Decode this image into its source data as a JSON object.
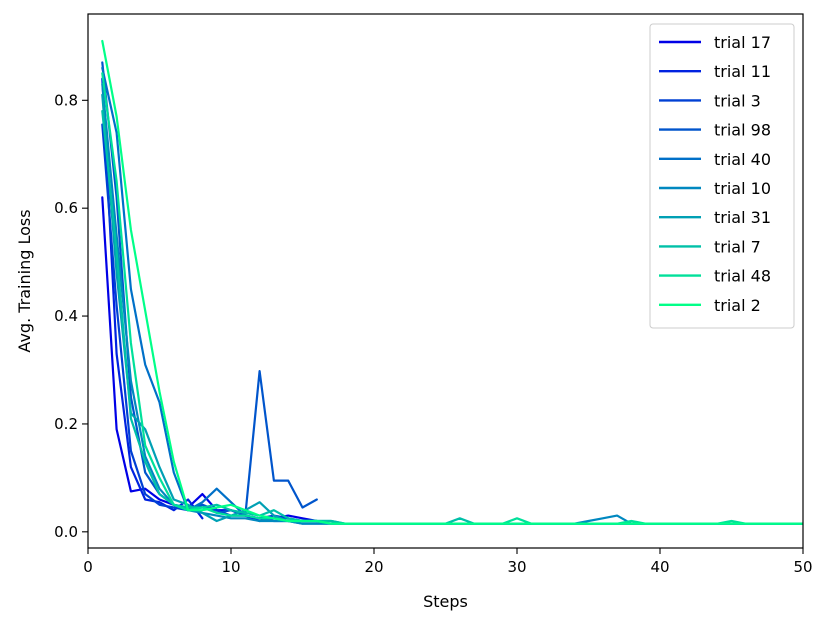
{
  "chart_data": {
    "type": "line",
    "title": "",
    "xlabel": "Steps",
    "ylabel": "Avg. Training Loss",
    "xlim": [
      0,
      50
    ],
    "ylim": [
      -0.03,
      0.96
    ],
    "xticks": [
      "0",
      "10",
      "20",
      "30",
      "40",
      "50"
    ],
    "yticks": [
      "0.0",
      "0.2",
      "0.4",
      "0.6",
      "0.8"
    ],
    "grid": false,
    "legend_position": "top-right",
    "series": [
      {
        "name": "trial 17",
        "color": "#0000e6",
        "x": [
          1,
          2,
          3,
          4,
          5,
          6,
          7,
          8,
          9,
          10,
          11,
          12,
          13,
          14,
          15,
          16
        ],
        "y": [
          0.62,
          0.19,
          0.075,
          0.08,
          0.06,
          0.05,
          0.045,
          0.07,
          0.04,
          0.04,
          0.03,
          0.02,
          0.025,
          0.03,
          0.025,
          0.02
        ]
      },
      {
        "name": "trial 11",
        "color": "#0022e0",
        "x": [
          1,
          2,
          3,
          4,
          5,
          6,
          7,
          8
        ],
        "y": [
          0.84,
          0.33,
          0.12,
          0.06,
          0.055,
          0.04,
          0.06,
          0.025
        ]
      },
      {
        "name": "trial 3",
        "color": "#0040d4",
        "x": [
          1,
          2,
          3,
          4,
          5,
          6,
          7,
          8,
          9,
          10,
          11,
          12,
          13,
          14,
          15,
          16
        ],
        "y": [
          0.755,
          0.42,
          0.15,
          0.07,
          0.05,
          0.045,
          0.04,
          0.05,
          0.04,
          0.03,
          0.03,
          0.025,
          0.03,
          0.025,
          0.02,
          0.02
        ]
      },
      {
        "name": "trial 98",
        "color": "#0055cc",
        "x": [
          1,
          2,
          3,
          4,
          5,
          6,
          7,
          8,
          9,
          10,
          11,
          12,
          13,
          14,
          15,
          16
        ],
        "y": [
          0.87,
          0.62,
          0.25,
          0.11,
          0.07,
          0.05,
          0.04,
          0.05,
          0.035,
          0.04,
          0.03,
          0.298,
          0.095,
          0.095,
          0.045,
          0.06
        ]
      },
      {
        "name": "trial 40",
        "color": "#0070c8",
        "x": [
          1,
          2,
          3,
          4,
          5,
          6,
          7,
          8,
          9,
          10,
          11,
          12,
          13,
          14,
          15,
          16,
          17,
          18,
          19,
          20,
          21,
          22,
          23,
          24,
          25,
          26,
          27,
          28,
          29,
          30,
          31,
          32,
          33,
          34,
          35,
          36,
          37,
          38,
          39,
          40,
          41,
          42,
          43,
          44,
          45,
          46,
          47,
          48,
          49,
          50
        ],
        "y": [
          0.86,
          0.74,
          0.45,
          0.31,
          0.24,
          0.11,
          0.04,
          0.055,
          0.08,
          0.055,
          0.03,
          0.025,
          0.02,
          0.02,
          0.015,
          0.015,
          0.015,
          0.015,
          0.015,
          0.015,
          0.015,
          0.015,
          0.015,
          0.015,
          0.015,
          0.015,
          0.015,
          0.015,
          0.015,
          0.015,
          0.015,
          0.015,
          0.015,
          0.015,
          0.015,
          0.015,
          0.015,
          0.015,
          0.015,
          0.015,
          0.015,
          0.015,
          0.015,
          0.015,
          0.015,
          0.015,
          0.015,
          0.015,
          0.015,
          0.015
        ]
      },
      {
        "name": "trial 10",
        "color": "#0088c0",
        "x": [
          1,
          2,
          3,
          4,
          5,
          6,
          7,
          8,
          9,
          10,
          11,
          12,
          13,
          14,
          15,
          16,
          17,
          18,
          19,
          20,
          21,
          22,
          23,
          24,
          25,
          26,
          27,
          28,
          29,
          30,
          31,
          32,
          33,
          34,
          35,
          36,
          37,
          38,
          39,
          40,
          41,
          42,
          43,
          44,
          45,
          46,
          47,
          48,
          49,
          50
        ],
        "y": [
          0.83,
          0.55,
          0.28,
          0.14,
          0.08,
          0.05,
          0.04,
          0.035,
          0.03,
          0.025,
          0.025,
          0.02,
          0.02,
          0.02,
          0.015,
          0.015,
          0.015,
          0.015,
          0.015,
          0.015,
          0.015,
          0.015,
          0.015,
          0.015,
          0.015,
          0.015,
          0.015,
          0.015,
          0.015,
          0.015,
          0.015,
          0.015,
          0.015,
          0.015,
          0.02,
          0.025,
          0.03,
          0.015,
          0.015,
          0.015,
          0.015,
          0.015,
          0.015,
          0.015,
          0.015,
          0.015,
          0.015,
          0.015,
          0.015,
          0.015
        ]
      },
      {
        "name": "trial 31",
        "color": "#00a0b4",
        "x": [
          1,
          2,
          3,
          4,
          5,
          6,
          7,
          8,
          9,
          10,
          11,
          12,
          13,
          14,
          15,
          16,
          17,
          18,
          19,
          20,
          21,
          22,
          23,
          24,
          25,
          26,
          27,
          28,
          29,
          30,
          31,
          32,
          33,
          34,
          35,
          36,
          37,
          38,
          39,
          40,
          41,
          42,
          43,
          44,
          45,
          46,
          47,
          48,
          49,
          50
        ],
        "y": [
          0.81,
          0.48,
          0.22,
          0.19,
          0.12,
          0.06,
          0.05,
          0.035,
          0.02,
          0.03,
          0.04,
          0.055,
          0.03,
          0.02,
          0.02,
          0.02,
          0.02,
          0.015,
          0.015,
          0.015,
          0.015,
          0.015,
          0.015,
          0.015,
          0.015,
          0.015,
          0.015,
          0.015,
          0.015,
          0.015,
          0.015,
          0.015,
          0.015,
          0.015,
          0.015,
          0.015,
          0.015,
          0.015,
          0.015,
          0.015,
          0.015,
          0.015,
          0.015,
          0.015,
          0.015,
          0.015,
          0.015,
          0.015,
          0.015,
          0.015
        ]
      },
      {
        "name": "trial 7",
        "color": "#00c0a8",
        "x": [
          1,
          2,
          3,
          4,
          5,
          6,
          7,
          8,
          9,
          10,
          11,
          12,
          13,
          14,
          15,
          16,
          17,
          18,
          19,
          20,
          21,
          22,
          23,
          24,
          25,
          26,
          27,
          28,
          29,
          30,
          31,
          32,
          33,
          34,
          35,
          36,
          37,
          38,
          39,
          40,
          41,
          42,
          43,
          44,
          45,
          46,
          47,
          48,
          49,
          50
        ],
        "y": [
          0.78,
          0.52,
          0.21,
          0.13,
          0.07,
          0.05,
          0.045,
          0.045,
          0.05,
          0.04,
          0.035,
          0.03,
          0.04,
          0.025,
          0.02,
          0.02,
          0.02,
          0.015,
          0.015,
          0.015,
          0.015,
          0.015,
          0.015,
          0.015,
          0.015,
          0.025,
          0.015,
          0.015,
          0.015,
          0.015,
          0.015,
          0.015,
          0.015,
          0.015,
          0.015,
          0.015,
          0.015,
          0.015,
          0.015,
          0.015,
          0.015,
          0.015,
          0.015,
          0.015,
          0.015,
          0.015,
          0.015,
          0.015,
          0.015,
          0.015
        ]
      },
      {
        "name": "trial 48",
        "color": "#00e09a",
        "x": [
          1,
          2,
          3,
          4,
          5,
          6,
          7,
          8,
          9,
          10,
          11,
          12,
          13,
          14,
          15,
          16,
          17,
          18,
          19,
          20,
          21,
          22,
          23,
          24,
          25,
          26,
          27,
          28,
          29,
          30,
          31,
          32,
          33,
          34,
          35,
          36,
          37,
          38,
          39,
          40,
          41,
          42,
          43,
          44,
          45,
          46,
          47,
          48,
          49,
          50
        ],
        "y": [
          0.85,
          0.65,
          0.35,
          0.16,
          0.1,
          0.05,
          0.04,
          0.045,
          0.035,
          0.03,
          0.03,
          0.025,
          0.025,
          0.02,
          0.02,
          0.02,
          0.015,
          0.015,
          0.015,
          0.015,
          0.015,
          0.015,
          0.015,
          0.015,
          0.015,
          0.015,
          0.015,
          0.015,
          0.015,
          0.025,
          0.015,
          0.015,
          0.015,
          0.015,
          0.015,
          0.015,
          0.015,
          0.02,
          0.015,
          0.015,
          0.015,
          0.015,
          0.015,
          0.015,
          0.02,
          0.015,
          0.015,
          0.015,
          0.015,
          0.015
        ]
      },
      {
        "name": "trial 2",
        "color": "#00ff88",
        "x": [
          1,
          2,
          3,
          4,
          5,
          6,
          7,
          8,
          9,
          10,
          11,
          12,
          13,
          14,
          15,
          16,
          17,
          18,
          19,
          20,
          21,
          22,
          23,
          24,
          25,
          26,
          27,
          28,
          29,
          30,
          31,
          32,
          33,
          34,
          35,
          36,
          37,
          38,
          39,
          40,
          41,
          42,
          43,
          44,
          45,
          46,
          47,
          48,
          49,
          50
        ],
        "y": [
          0.91,
          0.77,
          0.56,
          0.41,
          0.26,
          0.13,
          0.04,
          0.04,
          0.045,
          0.05,
          0.04,
          0.03,
          0.025,
          0.02,
          0.02,
          0.02,
          0.015,
          0.015,
          0.015,
          0.015,
          0.015,
          0.015,
          0.015,
          0.015,
          0.015,
          0.015,
          0.015,
          0.015,
          0.015,
          0.015,
          0.015,
          0.015,
          0.015,
          0.015,
          0.015,
          0.015,
          0.015,
          0.015,
          0.015,
          0.015,
          0.015,
          0.015,
          0.015,
          0.015,
          0.015,
          0.015,
          0.015,
          0.015,
          0.015,
          0.015
        ]
      }
    ]
  }
}
